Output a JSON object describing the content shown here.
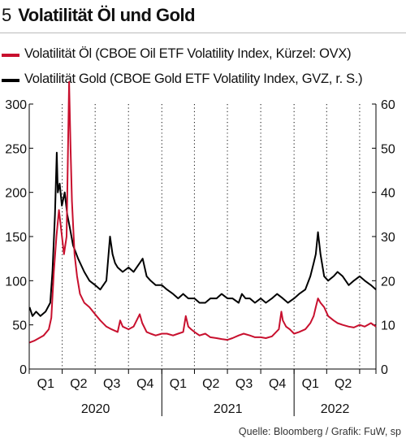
{
  "header": {
    "number": "5",
    "title": "Volatilität Öl und Gold"
  },
  "source": "Quelle: Bloomberg / Grafik: FuW, sp",
  "colors": {
    "oil": "#c8102e",
    "gold": "#000000"
  },
  "chart_data": {
    "type": "line",
    "title": "Volatilität Öl und Gold",
    "x_range": [
      "2020-01-01",
      "2022-08-15"
    ],
    "y_left": {
      "min": 0,
      "max": 300,
      "ticks": [
        0,
        50,
        100,
        150,
        200,
        250,
        300
      ]
    },
    "y_right": {
      "min": 0,
      "max": 60,
      "ticks": [
        0,
        10,
        20,
        30,
        40,
        50,
        60
      ]
    },
    "quarter_labels": [
      "Q1",
      "Q2",
      "Q3",
      "Q4",
      "Q1",
      "Q2",
      "Q3",
      "Q4",
      "Q1",
      "Q2"
    ],
    "years": [
      {
        "label": "2020",
        "start": "2020-01-01",
        "end": "2021-01-01"
      },
      {
        "label": "2021",
        "start": "2021-01-01",
        "end": "2022-01-01"
      },
      {
        "label": "2022",
        "start": "2022-01-01",
        "end": "2022-08-15"
      }
    ],
    "grid": "vertical dotted lines at quarter boundaries",
    "legend_position": "top-left",
    "series": [
      {
        "name": "Volatilität Öl (CBOE Oil ETF Volatility Index, Kürzel: OVX)",
        "axis": "left",
        "color": "#c8102e",
        "points": [
          [
            "2020-01-02",
            30
          ],
          [
            "2020-01-15",
            32
          ],
          [
            "2020-01-28",
            35
          ],
          [
            "2020-02-10",
            38
          ],
          [
            "2020-02-24",
            45
          ],
          [
            "2020-03-02",
            58
          ],
          [
            "2020-03-09",
            110
          ],
          [
            "2020-03-16",
            150
          ],
          [
            "2020-03-23",
            180
          ],
          [
            "2020-03-30",
            155
          ],
          [
            "2020-04-06",
            130
          ],
          [
            "2020-04-13",
            150
          ],
          [
            "2020-04-20",
            325
          ],
          [
            "2020-04-24",
            250
          ],
          [
            "2020-04-28",
            190
          ],
          [
            "2020-05-05",
            130
          ],
          [
            "2020-05-12",
            105
          ],
          [
            "2020-05-20",
            85
          ],
          [
            "2020-06-01",
            75
          ],
          [
            "2020-06-15",
            70
          ],
          [
            "2020-07-01",
            62
          ],
          [
            "2020-07-15",
            55
          ],
          [
            "2020-08-01",
            48
          ],
          [
            "2020-08-15",
            45
          ],
          [
            "2020-09-01",
            42
          ],
          [
            "2020-09-08",
            55
          ],
          [
            "2020-09-15",
            48
          ],
          [
            "2020-10-01",
            45
          ],
          [
            "2020-10-15",
            48
          ],
          [
            "2020-11-01",
            62
          ],
          [
            "2020-11-08",
            52
          ],
          [
            "2020-11-20",
            42
          ],
          [
            "2020-12-01",
            40
          ],
          [
            "2020-12-15",
            38
          ],
          [
            "2021-01-01",
            40
          ],
          [
            "2021-01-15",
            40
          ],
          [
            "2021-02-01",
            38
          ],
          [
            "2021-02-15",
            40
          ],
          [
            "2021-03-01",
            42
          ],
          [
            "2021-03-08",
            60
          ],
          [
            "2021-03-15",
            48
          ],
          [
            "2021-03-23",
            45
          ],
          [
            "2021-04-01",
            42
          ],
          [
            "2021-04-15",
            38
          ],
          [
            "2021-05-01",
            40
          ],
          [
            "2021-05-15",
            36
          ],
          [
            "2021-06-01",
            35
          ],
          [
            "2021-06-15",
            34
          ],
          [
            "2021-07-01",
            33
          ],
          [
            "2021-07-15",
            35
          ],
          [
            "2021-08-01",
            38
          ],
          [
            "2021-08-15",
            40
          ],
          [
            "2021-09-01",
            38
          ],
          [
            "2021-09-15",
            36
          ],
          [
            "2021-10-01",
            36
          ],
          [
            "2021-10-15",
            35
          ],
          [
            "2021-11-01",
            37
          ],
          [
            "2021-11-20",
            45
          ],
          [
            "2021-11-27",
            65
          ],
          [
            "2021-12-01",
            55
          ],
          [
            "2021-12-10",
            48
          ],
          [
            "2021-12-20",
            45
          ],
          [
            "2022-01-01",
            40
          ],
          [
            "2022-01-15",
            42
          ],
          [
            "2022-02-01",
            45
          ],
          [
            "2022-02-15",
            52
          ],
          [
            "2022-02-24",
            60
          ],
          [
            "2022-03-02",
            70
          ],
          [
            "2022-03-08",
            80
          ],
          [
            "2022-03-15",
            75
          ],
          [
            "2022-03-25",
            70
          ],
          [
            "2022-04-05",
            60
          ],
          [
            "2022-04-20",
            55
          ],
          [
            "2022-05-01",
            52
          ],
          [
            "2022-05-15",
            50
          ],
          [
            "2022-06-01",
            48
          ],
          [
            "2022-06-15",
            47
          ],
          [
            "2022-07-01",
            50
          ],
          [
            "2022-07-15",
            48
          ],
          [
            "2022-08-01",
            52
          ],
          [
            "2022-08-15",
            48
          ]
        ]
      },
      {
        "name": "Volatilität Gold (CBOE Gold ETF Volatility Index, GVZ, r. S.)",
        "axis": "right",
        "color": "#000000",
        "points": [
          [
            "2020-01-02",
            14
          ],
          [
            "2020-01-10",
            12
          ],
          [
            "2020-01-20",
            13
          ],
          [
            "2020-02-01",
            12
          ],
          [
            "2020-02-15",
            13
          ],
          [
            "2020-02-28",
            15
          ],
          [
            "2020-03-05",
            22
          ],
          [
            "2020-03-12",
            35
          ],
          [
            "2020-03-17",
            49
          ],
          [
            "2020-03-20",
            40
          ],
          [
            "2020-03-25",
            42
          ],
          [
            "2020-03-31",
            37
          ],
          [
            "2020-04-08",
            40
          ],
          [
            "2020-04-15",
            35
          ],
          [
            "2020-04-22",
            32
          ],
          [
            "2020-05-01",
            28
          ],
          [
            "2020-05-15",
            25
          ],
          [
            "2020-06-01",
            22
          ],
          [
            "2020-06-15",
            20
          ],
          [
            "2020-07-01",
            19
          ],
          [
            "2020-07-15",
            18
          ],
          [
            "2020-08-01",
            20
          ],
          [
            "2020-08-11",
            30
          ],
          [
            "2020-08-18",
            26
          ],
          [
            "2020-08-25",
            24
          ],
          [
            "2020-09-01",
            23
          ],
          [
            "2020-09-15",
            22
          ],
          [
            "2020-10-01",
            23
          ],
          [
            "2020-10-15",
            22
          ],
          [
            "2020-11-01",
            24
          ],
          [
            "2020-11-09",
            25
          ],
          [
            "2020-11-20",
            21
          ],
          [
            "2020-12-01",
            20
          ],
          [
            "2020-12-15",
            19
          ],
          [
            "2021-01-01",
            19
          ],
          [
            "2021-01-15",
            18
          ],
          [
            "2021-02-01",
            17
          ],
          [
            "2021-02-15",
            16
          ],
          [
            "2021-03-01",
            17
          ],
          [
            "2021-03-15",
            16
          ],
          [
            "2021-04-01",
            16
          ],
          [
            "2021-04-15",
            15
          ],
          [
            "2021-05-01",
            15
          ],
          [
            "2021-05-15",
            16
          ],
          [
            "2021-06-01",
            16
          ],
          [
            "2021-06-15",
            17
          ],
          [
            "2021-07-01",
            16
          ],
          [
            "2021-07-15",
            16
          ],
          [
            "2021-08-01",
            15
          ],
          [
            "2021-08-10",
            17
          ],
          [
            "2021-08-20",
            16
          ],
          [
            "2021-09-01",
            16
          ],
          [
            "2021-09-15",
            15
          ],
          [
            "2021-10-01",
            16
          ],
          [
            "2021-10-15",
            15
          ],
          [
            "2021-11-01",
            16
          ],
          [
            "2021-11-15",
            17
          ],
          [
            "2021-12-01",
            16
          ],
          [
            "2021-12-15",
            15
          ],
          [
            "2022-01-01",
            16
          ],
          [
            "2022-01-15",
            17
          ],
          [
            "2022-02-01",
            18
          ],
          [
            "2022-02-15",
            21
          ],
          [
            "2022-02-24",
            24
          ],
          [
            "2022-03-02",
            26
          ],
          [
            "2022-03-08",
            31
          ],
          [
            "2022-03-15",
            26
          ],
          [
            "2022-03-25",
            21
          ],
          [
            "2022-04-05",
            20
          ],
          [
            "2022-04-20",
            21
          ],
          [
            "2022-05-01",
            22
          ],
          [
            "2022-05-15",
            21
          ],
          [
            "2022-06-01",
            19
          ],
          [
            "2022-06-15",
            20
          ],
          [
            "2022-07-01",
            21
          ],
          [
            "2022-07-15",
            20
          ],
          [
            "2022-08-01",
            19
          ],
          [
            "2022-08-15",
            18
          ]
        ]
      }
    ]
  }
}
